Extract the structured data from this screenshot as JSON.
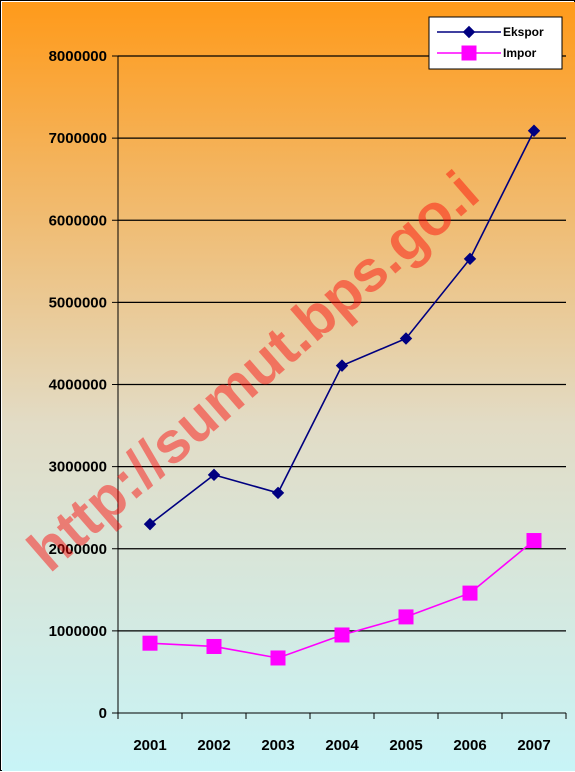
{
  "chart_data": {
    "type": "line",
    "categories": [
      "2001",
      "2002",
      "2003",
      "2004",
      "2005",
      "2006",
      "2007"
    ],
    "series": [
      {
        "name": "Ekspor",
        "color": "#000080",
        "marker": "diamond",
        "values": [
          2300000,
          2900000,
          2680000,
          4230000,
          4560000,
          5530000,
          7090000
        ]
      },
      {
        "name": "Impor",
        "color": "#ff00ff",
        "marker": "square",
        "values": [
          850000,
          810000,
          670000,
          950000,
          1170000,
          1460000,
          2100000
        ]
      }
    ],
    "ylim": [
      0,
      8000000
    ],
    "yticks": [
      "0",
      "1000000",
      "2000000",
      "3000000",
      "4000000",
      "5000000",
      "6000000",
      "7000000",
      "8000000"
    ],
    "grid": true,
    "legend_position": "top-right",
    "background_gradient": [
      "#ff9a1a",
      "#c8f4f7"
    ]
  },
  "watermark": "http://sumut.bps.go.i"
}
